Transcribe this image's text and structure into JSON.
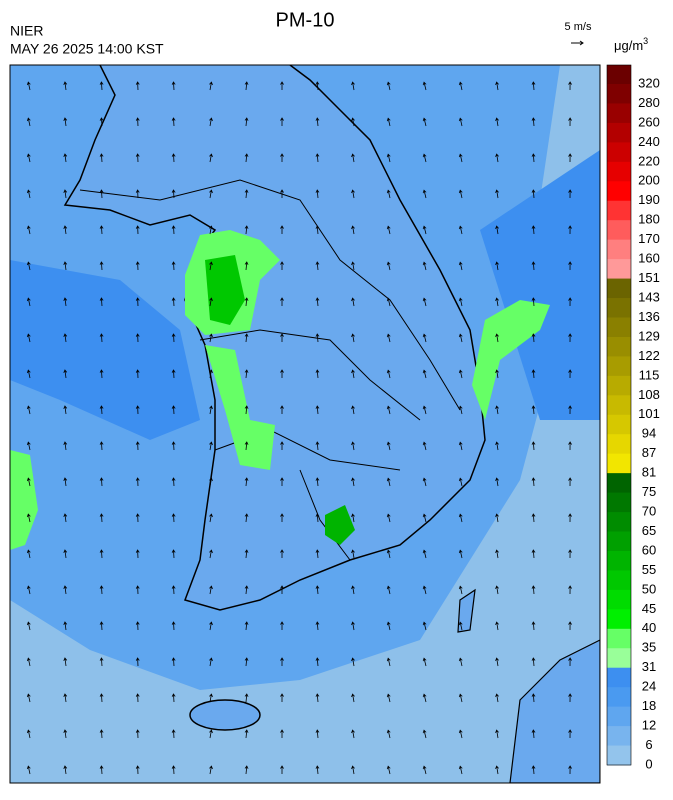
{
  "header": {
    "title": "PM-10",
    "agency": "NIER",
    "datetime": "MAY 26 2025 14:00 KST"
  },
  "wind_scale": {
    "label": "5 m/s"
  },
  "colorbar": {
    "unit": "μg/m",
    "unit_exp": "3",
    "labels": [
      320,
      280,
      260,
      240,
      220,
      200,
      190,
      180,
      170,
      160,
      151,
      143,
      136,
      129,
      122,
      115,
      108,
      101,
      94,
      87,
      81,
      75,
      70,
      65,
      60,
      55,
      50,
      45,
      40,
      35,
      31,
      24,
      18,
      12,
      6,
      0
    ],
    "colors": [
      "#6b0000",
      "#7f0000",
      "#990000",
      "#b30000",
      "#cc0000",
      "#e60000",
      "#ff0000",
      "#ff3333",
      "#ff5c5c",
      "#ff7f7f",
      "#ff9999",
      "#6b6400",
      "#7a7200",
      "#8a8000",
      "#998e00",
      "#a89c00",
      "#b8ab00",
      "#c8ba00",
      "#d6c800",
      "#e6d700",
      "#f2e600",
      "#006400",
      "#007800",
      "#008c00",
      "#00a000",
      "#00b400",
      "#00c800",
      "#00dc00",
      "#00f000",
      "#66ff66",
      "#99ff99",
      "#3d8ff0",
      "#4a9af0",
      "#5fa6ef",
      "#78b4ee",
      "#93c4ec"
    ]
  }
}
